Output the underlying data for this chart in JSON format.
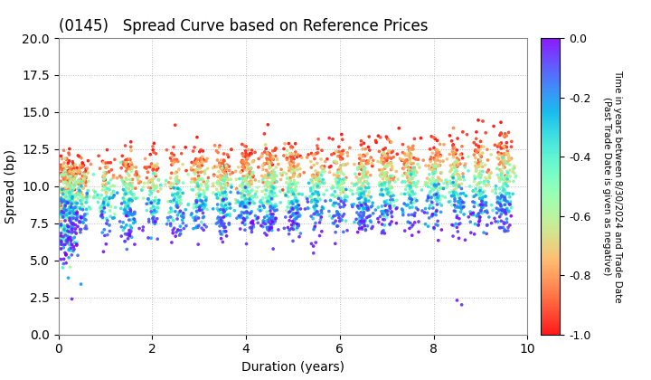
{
  "title": "(0145)   Spread Curve based on Reference Prices",
  "xlabel": "Duration (years)",
  "ylabel": "Spread (bp)",
  "colorbar_label_line1": "Time in years between 8/30/2024 and Trade Date",
  "colorbar_label_line2": "(Past Trade Date is given as negative)",
  "xlim": [
    0,
    10
  ],
  "ylim": [
    0.0,
    20.0
  ],
  "yticks": [
    0.0,
    2.5,
    5.0,
    7.5,
    10.0,
    12.5,
    15.0,
    17.5,
    20.0
  ],
  "xticks": [
    0,
    2,
    4,
    6,
    8,
    10
  ],
  "cmap": "rainbow_r",
  "clim": [
    -1.0,
    0.0
  ],
  "cticks": [
    0.0,
    -0.2,
    -0.4,
    -0.6,
    -0.8,
    -1.0
  ],
  "background_color": "#ffffff",
  "grid_color": "#aaaaaa",
  "scatter_size": 7,
  "seed": 42
}
